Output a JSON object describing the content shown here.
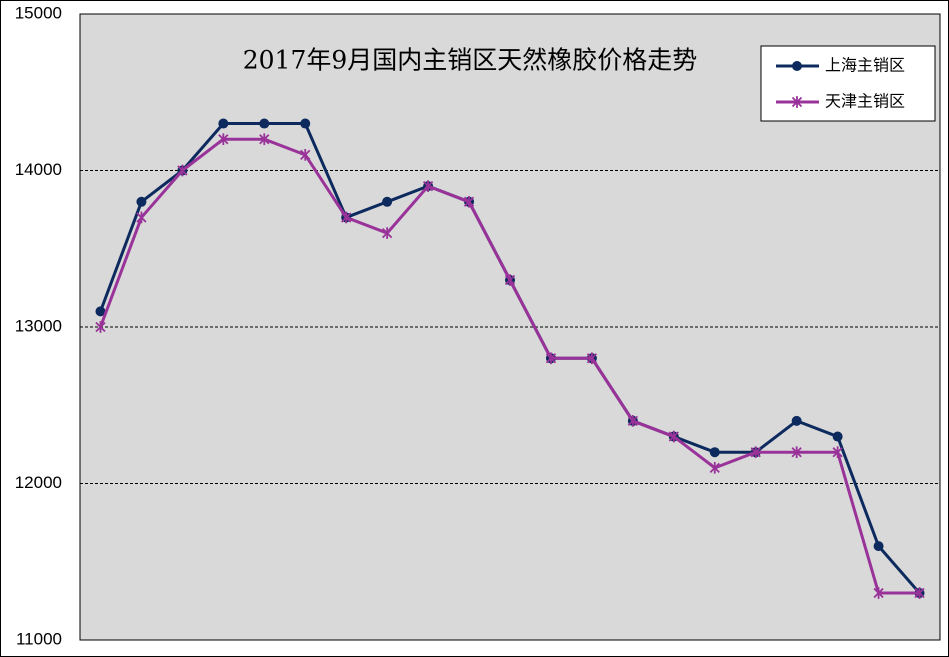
{
  "chart_data": {
    "type": "line",
    "title": "2017年9月国内主销区天然橡胶价格走势",
    "categories": [
      null,
      null,
      null,
      null,
      null,
      null,
      null,
      null,
      null,
      null,
      null,
      null,
      null,
      null,
      null,
      null,
      null,
      null,
      null,
      null,
      null
    ],
    "series": [
      {
        "name": "上海主销区",
        "color": "#0d2a5e",
        "marker": "circle",
        "values": [
          13100,
          13800,
          14000,
          14300,
          14300,
          14300,
          13700,
          13800,
          13900,
          13800,
          13300,
          12800,
          12800,
          12400,
          12300,
          12200,
          12200,
          12400,
          12300,
          11600,
          11300
        ]
      },
      {
        "name": "天津主销区",
        "color": "#993399",
        "marker": "asterisk",
        "values": [
          13000,
          13700,
          14000,
          14200,
          14200,
          14100,
          13700,
          13600,
          13900,
          13800,
          13300,
          12800,
          12800,
          12400,
          12300,
          12100,
          12200,
          12200,
          12200,
          11300,
          11300
        ]
      }
    ],
    "ylim": [
      11000,
      15000
    ],
    "yticks": [
      11000,
      12000,
      13000,
      14000,
      15000
    ],
    "grid": true,
    "legend": "upper right"
  }
}
